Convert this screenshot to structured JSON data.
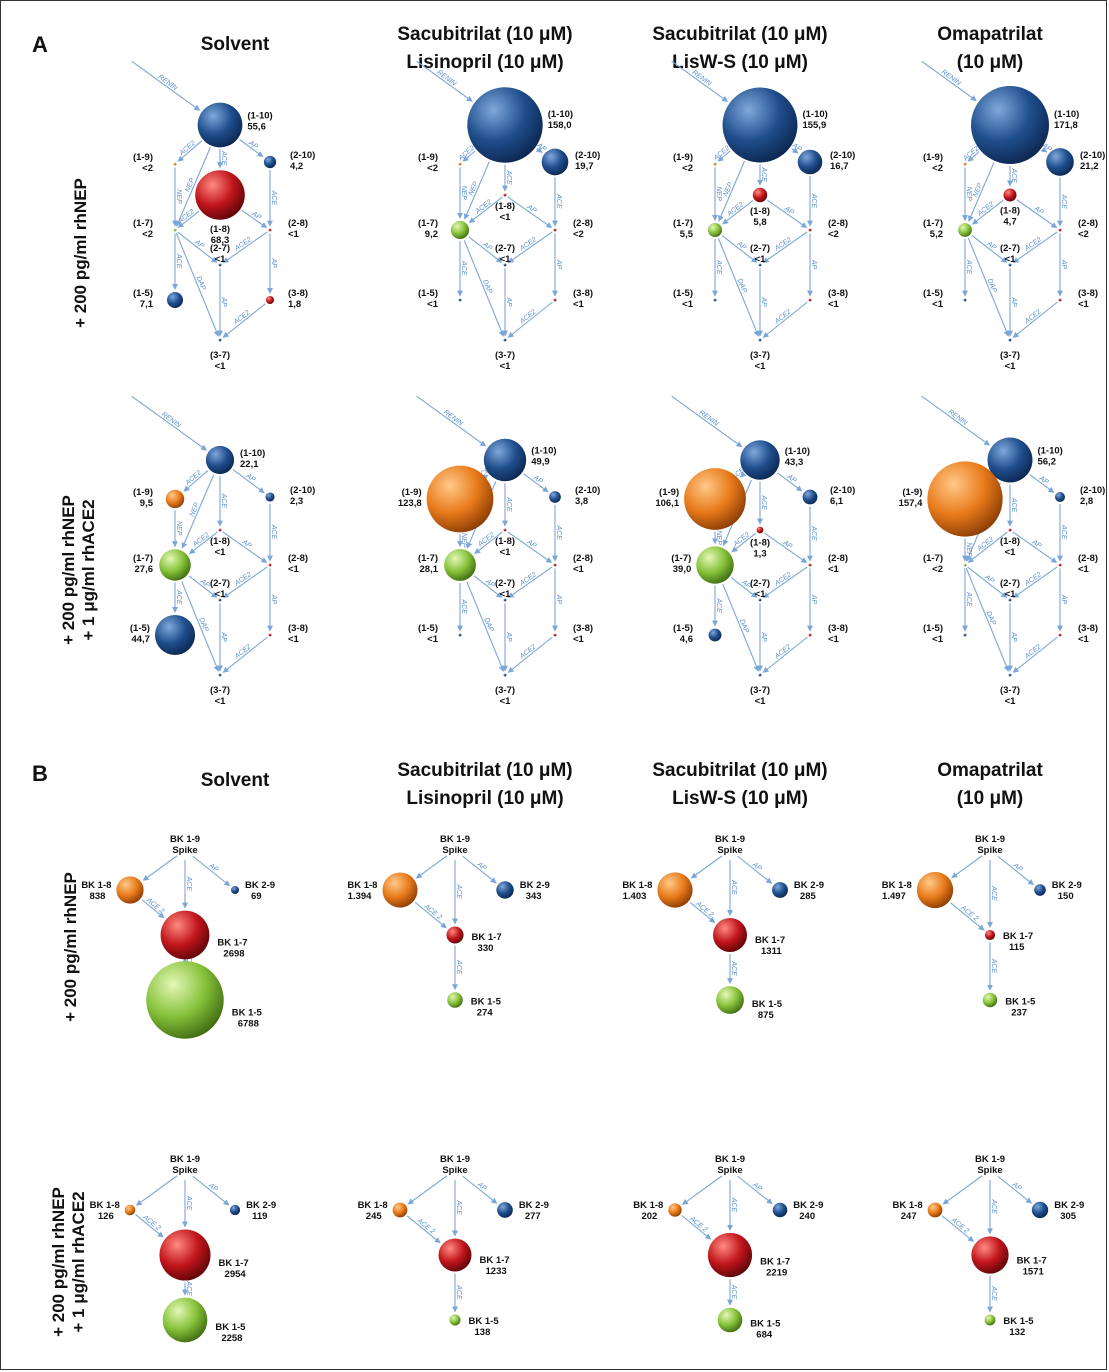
{
  "panels": [
    {
      "letter": "A",
      "columns": [
        {
          "line1": "Solvent",
          "line2": ""
        },
        {
          "line1": "Sacubitrilat (10 μM)",
          "line2": "Lisinopril (10 μM)"
        },
        {
          "line1": "Sacubitrilat (10 μM)",
          "line2": "LisW-S (10 μM)"
        },
        {
          "line1": "Omapatrilat",
          "line2": "(10 μM)"
        }
      ],
      "rows": [
        {
          "line1": "+ 200 pg/ml rhNEP",
          "line2": ""
        },
        {
          "line1": "+ 200 pg/ml rhNEP",
          "line2": "+ 1 μg/ml rhACE2"
        }
      ]
    },
    {
      "letter": "B",
      "columns": [
        {
          "line1": "Solvent",
          "line2": ""
        },
        {
          "line1": "Sacubitrilat (10 μM)",
          "line2": "Lisinopril (10 μM)"
        },
        {
          "line1": "Sacubitrilat (10 μM)",
          "line2": "LisW-S (10 μM)"
        },
        {
          "line1": "Omapatrilat",
          "line2": "(10 μM)"
        }
      ],
      "rows": [
        {
          "line1": "+ 200 pg/ml  rhNEP",
          "line2": ""
        },
        {
          "line1": "+ 200 pg/ml rhNEP",
          "line2": "+ 1 μg/ml rhACE2"
        }
      ]
    }
  ],
  "colors": {
    "blue": "#1f4e8c",
    "red": "#c0151b",
    "orange": "#e87a1a",
    "green": "#86c23a",
    "edge": "#7aa6d8"
  },
  "angiotensin_metabolites": [
    "1-10",
    "2-10",
    "1-9",
    "1-8",
    "1-7",
    "2-8",
    "2-7",
    "1-5",
    "3-8",
    "3-7"
  ],
  "angiotensin_node_colors": {
    "1-10": "blue",
    "2-10": "blue",
    "1-9": "orange",
    "1-8": "red",
    "1-7": "green",
    "2-8": "red",
    "2-7": "blue",
    "1-5": "blue",
    "3-8": "red",
    "3-7": "blue"
  },
  "angiotensin_values": [
    [
      {
        "1-10": "55,6",
        "2-10": "4,2",
        "1-9": "<2",
        "1-8": "68,3",
        "1-7": "<2",
        "2-8": "<1",
        "2-7": "<1",
        "1-5": "7,1",
        "3-8": "1,8",
        "3-7": "<1"
      },
      {
        "1-10": "158,0",
        "2-10": "19,7",
        "1-9": "<2",
        "1-8": "<1",
        "1-7": "9,2",
        "2-8": "<2",
        "2-7": "<1",
        "1-5": "<1",
        "3-8": "<1",
        "3-7": "<1"
      },
      {
        "1-10": "155,9",
        "2-10": "16,7",
        "1-9": "<2",
        "1-8": "5,8",
        "1-7": "5,5",
        "2-8": "<2",
        "2-7": "<1",
        "1-5": "<1",
        "3-8": "<1",
        "3-7": "<1"
      },
      {
        "1-10": "171,8",
        "2-10": "21,2",
        "1-9": "<2",
        "1-8": "4,7",
        "1-7": "5,2",
        "2-8": "<2",
        "2-7": "<1",
        "1-5": "<1",
        "3-8": "<1",
        "3-7": "<1"
      }
    ],
    [
      {
        "1-10": "22,1",
        "2-10": "2,3",
        "1-9": "9,5",
        "1-8": "<1",
        "1-7": "27,6",
        "2-8": "<1",
        "2-7": "<1",
        "1-5": "44,7",
        "3-8": "<1",
        "3-7": "<1"
      },
      {
        "1-10": "49,9",
        "2-10": "3,8",
        "1-9": "123,8",
        "1-8": "<1",
        "1-7": "28,1",
        "2-8": "<1",
        "2-7": "<1",
        "1-5": "<1",
        "3-8": "<1",
        "3-7": "<1"
      },
      {
        "1-10": "43,3",
        "2-10": "6,1",
        "1-9": "106,1",
        "1-8": "1,3",
        "1-7": "39,0",
        "2-8": "<1",
        "2-7": "<1",
        "1-5": "4,6",
        "3-8": "<1",
        "3-7": "<1"
      },
      {
        "1-10": "56,2",
        "2-10": "2,8",
        "1-9": "157,4",
        "1-8": "<1",
        "1-7": "<2",
        "2-8": "<1",
        "2-7": "<1",
        "1-5": "<1",
        "3-8": "<1",
        "3-7": "<1"
      }
    ]
  ],
  "angiotensin_edges": [
    {
      "from": "renin",
      "to": "1-10",
      "label": "RENIN"
    },
    {
      "from": "1-10",
      "to": "1-9",
      "label": "ACE2"
    },
    {
      "from": "1-10",
      "to": "1-8",
      "label": "ACE"
    },
    {
      "from": "1-10",
      "to": "2-10",
      "label": "AP"
    },
    {
      "from": "1-10",
      "to": "1-7",
      "label": "NEP"
    },
    {
      "from": "1-9",
      "to": "1-7",
      "label": "NEP"
    },
    {
      "from": "1-8",
      "to": "1-7",
      "label": "ACE2"
    },
    {
      "from": "1-8",
      "to": "2-8",
      "label": "AP"
    },
    {
      "from": "2-10",
      "to": "2-8",
      "label": "ACE"
    },
    {
      "from": "2-8",
      "to": "2-7",
      "label": "ACE2"
    },
    {
      "from": "1-7",
      "to": "2-7",
      "label": "AP"
    },
    {
      "from": "1-7",
      "to": "1-5",
      "label": "ACE"
    },
    {
      "from": "1-7",
      "to": "3-7",
      "label": "DAP"
    },
    {
      "from": "2-8",
      "to": "3-8",
      "label": "AP"
    },
    {
      "from": "3-8",
      "to": "3-7",
      "label": "ACE2"
    },
    {
      "from": "2-7",
      "to": "3-7",
      "label": "AP"
    }
  ],
  "bradykinin_metabolites": [
    "BK 1-9",
    "BK 1-8",
    "BK 2-9",
    "BK 1-7",
    "BK 1-5"
  ],
  "bradykinin_source_sub": "Spike",
  "bradykinin_node_colors": {
    "BK 1-8": "orange",
    "BK 2-9": "blue",
    "BK 1-7": "red",
    "BK 1-5": "green"
  },
  "bradykinin_values": [
    [
      {
        "BK 1-8": "838",
        "BK 2-9": "69",
        "BK 1-7": "2698",
        "BK 1-5": "6788"
      },
      {
        "BK 1-8": "1.394",
        "BK 2-9": "343",
        "BK 1-7": "330",
        "BK 1-5": "274"
      },
      {
        "BK 1-8": "1.403",
        "BK 2-9": "285",
        "BK 1-7": "1311",
        "BK 1-5": "875"
      },
      {
        "BK 1-8": "1.497",
        "BK 2-9": "150",
        "BK 1-7": "115",
        "BK 1-5": "237"
      }
    ],
    [
      {
        "BK 1-8": "126",
        "BK 2-9": "119",
        "BK 1-7": "2954",
        "BK 1-5": "2258"
      },
      {
        "BK 1-8": "245",
        "BK 2-9": "277",
        "BK 1-7": "1233",
        "BK 1-5": "138"
      },
      {
        "BK 1-8": "202",
        "BK 2-9": "240",
        "BK 1-7": "2219",
        "BK 1-5": "684"
      },
      {
        "BK 1-8": "247",
        "BK 2-9": "305",
        "BK 1-7": "1571",
        "BK 1-5": "132"
      }
    ]
  ],
  "bradykinin_edges": [
    {
      "from": "BK 1-9",
      "to": "BK 1-8",
      "label": ""
    },
    {
      "from": "BK 1-9",
      "to": "BK 1-7",
      "label": "ACE"
    },
    {
      "from": "BK 1-9",
      "to": "BK 2-9",
      "label": "AP"
    },
    {
      "from": "BK 1-8",
      "to": "BK 1-7",
      "label": "ACE 2"
    },
    {
      "from": "BK 1-7",
      "to": "BK 1-5",
      "label": "ACE"
    }
  ]
}
